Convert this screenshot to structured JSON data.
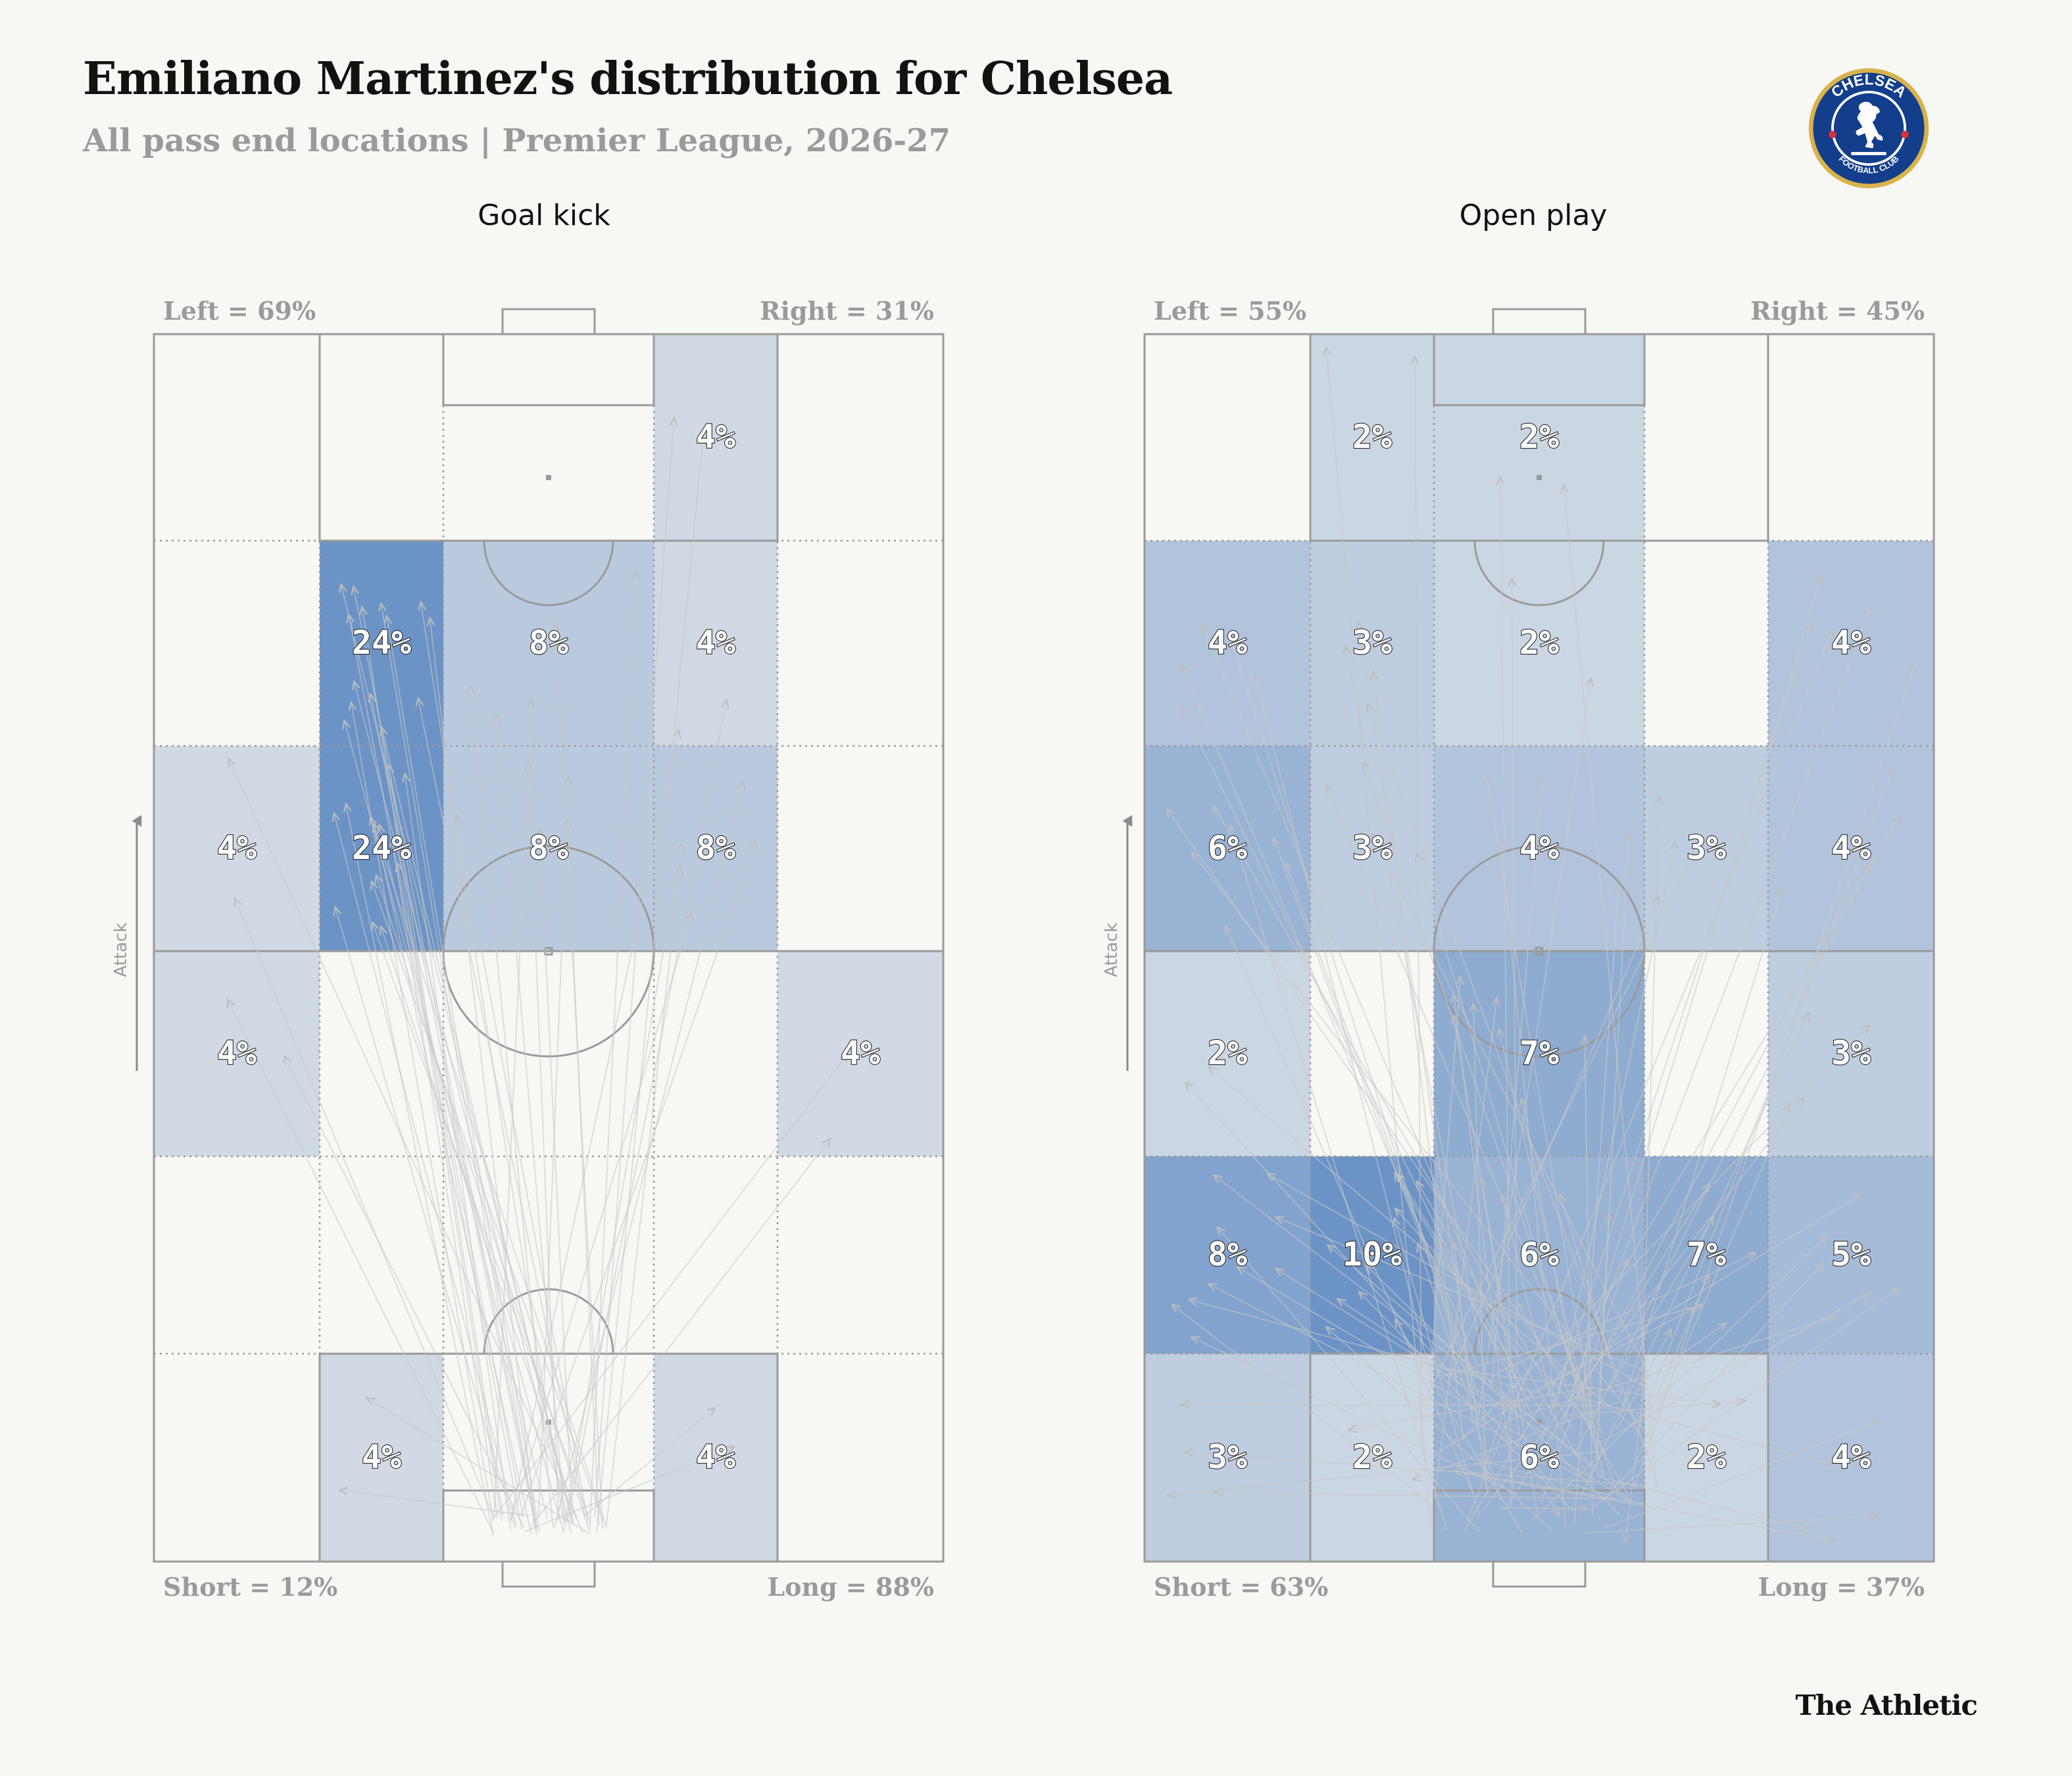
{
  "header": {
    "title": "Emiliano Martinez's distribution for Chelsea",
    "subtitle": "All pass end locations | Premier League, 2026-27",
    "crest_text_top": "CHELSEA",
    "crest_text_bottom": "FOOTBALL CLUB",
    "crest_icon": "chelsea-lion-crest"
  },
  "footer": {
    "brand": "The Athletic"
  },
  "colors": {
    "background": "#f7f7f3",
    "heat_high": "#6b93c6",
    "heat_low": "#e9ebec",
    "arrow": "#c8c8c8",
    "lines": "#9a9a9a"
  },
  "chart_data": [
    {
      "type": "heatmap",
      "title": "Goal kick",
      "attack_label": "Attack",
      "side_labels": {
        "left": "Left = 69%",
        "right": "Right = 31%",
        "short": "Short = 12%",
        "long": "Long = 88%"
      },
      "rows": 6,
      "cols": 5,
      "row_order": "attacking end (top) to own goal (bottom)",
      "zones": [
        [
          0,
          0,
          0,
          4,
          0
        ],
        [
          0,
          24,
          8,
          4,
          0
        ],
        [
          4,
          24,
          8,
          8,
          0
        ],
        [
          4,
          0,
          0,
          0,
          4
        ],
        [
          0,
          0,
          0,
          0,
          0
        ],
        [
          0,
          4,
          0,
          4,
          0
        ]
      ],
      "labels": [
        [
          "",
          "",
          "",
          "4%",
          ""
        ],
        [
          "",
          "24%",
          "8%",
          "4%",
          ""
        ],
        [
          "4%",
          "24%",
          "8%",
          "8%",
          ""
        ],
        [
          "4%",
          "",
          "",
          "",
          "4%"
        ],
        [
          "",
          "",
          "",
          "",
          ""
        ],
        [
          "",
          "4%",
          "",
          "4%",
          ""
        ]
      ]
    },
    {
      "type": "heatmap",
      "title": "Open play",
      "attack_label": "Attack",
      "side_labels": {
        "left": "Left = 55%",
        "right": "Right = 45%",
        "short": "Short = 63%",
        "long": "Long = 37%"
      },
      "rows": 6,
      "cols": 5,
      "row_order": "attacking end (top) to own goal (bottom)",
      "zones": [
        [
          0,
          2,
          2,
          0,
          0
        ],
        [
          4,
          3,
          2,
          0,
          4
        ],
        [
          6,
          3,
          4,
          3,
          4
        ],
        [
          2,
          0,
          7,
          0,
          3
        ],
        [
          8,
          10,
          6,
          7,
          5
        ],
        [
          3,
          2,
          6,
          2,
          4
        ]
      ],
      "labels": [
        [
          "",
          "2%",
          "2%",
          "",
          ""
        ],
        [
          "4%",
          "3%",
          "2%",
          "",
          "4%"
        ],
        [
          "6%",
          "3%",
          "4%",
          "3%",
          "4%"
        ],
        [
          "2%",
          "",
          "7%",
          "",
          "3%"
        ],
        [
          "8%",
          "10%",
          "6%",
          "7%",
          "5%"
        ],
        [
          "3%",
          "2%",
          "6%",
          "2%",
          "4%"
        ]
      ]
    }
  ]
}
